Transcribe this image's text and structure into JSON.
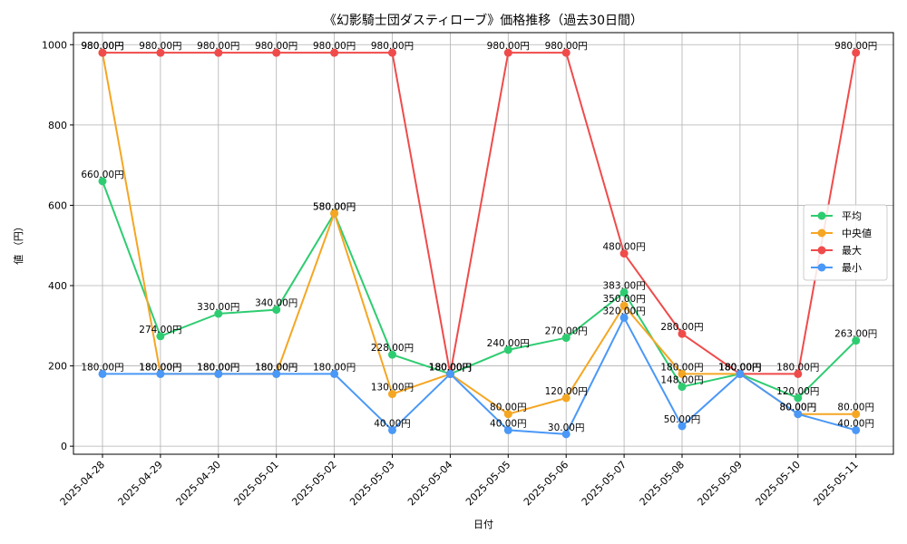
{
  "chart_data": {
    "type": "line",
    "title": "《幻影騎士団ダスティローブ》価格推移（過去30日間）",
    "xlabel": "日付",
    "ylabel": "値 （円）",
    "ylim": [
      -20,
      1030
    ],
    "yticks": [
      0,
      200,
      400,
      600,
      800,
      1000
    ],
    "grid": true,
    "legend_position": "center-right",
    "value_suffix": "円",
    "categories": [
      "2025-04-28",
      "2025-04-29",
      "2025-04-30",
      "2025-05-01",
      "2025-05-02",
      "2025-05-03",
      "2025-05-04",
      "2025-05-05",
      "2025-05-06",
      "2025-05-07",
      "2025-05-08",
      "2025-05-09",
      "2025-05-10",
      "2025-05-11"
    ],
    "series": [
      {
        "name": "平均",
        "color": "#2ecc71",
        "values": [
          660,
          274,
          330,
          340,
          580,
          228,
          180,
          240,
          270,
          383,
          148,
          180,
          120,
          263
        ]
      },
      {
        "name": "中央値",
        "color": "#f5a623",
        "values": [
          980,
          180,
          180,
          180,
          580,
          130,
          180,
          80,
          120,
          350,
          180,
          180,
          80,
          80
        ]
      },
      {
        "name": "最大",
        "color": "#ef4b4b",
        "values": [
          980,
          980,
          980,
          980,
          980,
          980,
          180,
          980,
          980,
          480,
          280,
          180,
          180,
          980
        ]
      },
      {
        "name": "最小",
        "color": "#4a98f7",
        "values": [
          180,
          180,
          180,
          180,
          180,
          40,
          180,
          40,
          30,
          320,
          50,
          180,
          80,
          40
        ]
      }
    ]
  }
}
